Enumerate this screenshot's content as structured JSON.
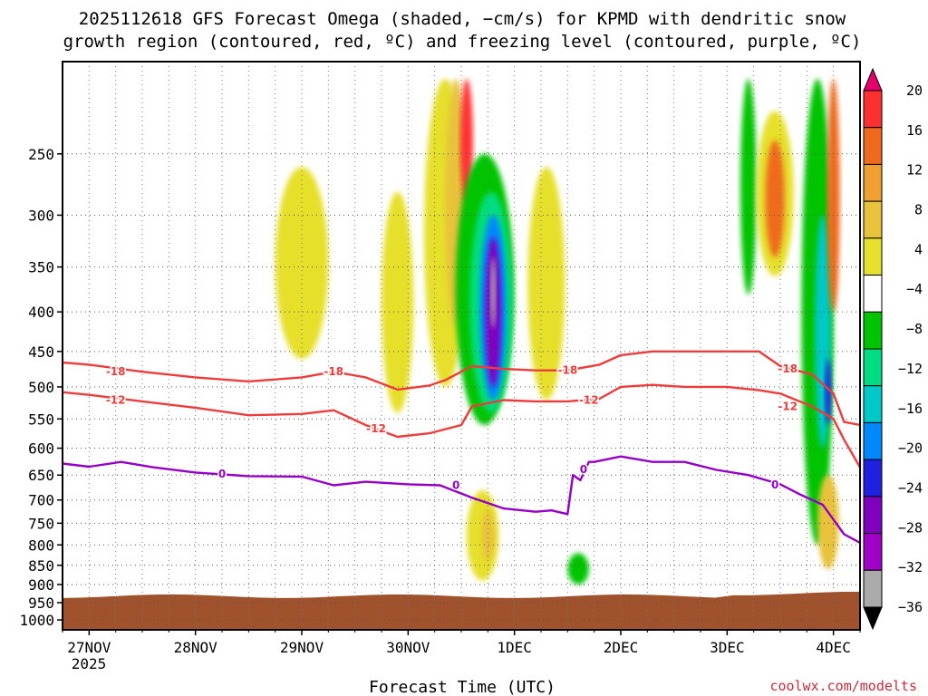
{
  "chart_data": {
    "type": "heatmap",
    "title_line1": "2025112618 GFS Forecast Omega (shaded, −cm/s) for KPMD with dendritic snow",
    "title_line2": "growth region (contoured, red, ºC) and freezing level (contoured, purple, ºC)",
    "xlabel": "Forecast Time (UTC)",
    "credit": "coolwx.com/modelts",
    "x_ticks": [
      {
        "label": "27NOV",
        "day": 0
      },
      {
        "label": "28NOV",
        "day": 1
      },
      {
        "label": "29NOV",
        "day": 2
      },
      {
        "label": "30NOV",
        "day": 3
      },
      {
        "label": "1DEC",
        "day": 4
      },
      {
        "label": "2DEC",
        "day": 5
      },
      {
        "label": "3DEC",
        "day": 6
      },
      {
        "label": "4DEC",
        "day": 7
      }
    ],
    "x_year": "2025",
    "xlim_days": [
      -0.25,
      7.25
    ],
    "y_ticks": [
      250,
      300,
      350,
      400,
      450,
      500,
      550,
      600,
      650,
      700,
      750,
      800,
      850,
      900,
      950,
      1000
    ],
    "ylim_hpa": [
      190,
      1030
    ],
    "ground_top_hpa": 932,
    "colorbar": {
      "tick_labels": [
        "20",
        "16",
        "12",
        "8",
        "4",
        "−4",
        "−8",
        "−12",
        "−16",
        "−20",
        "−24",
        "−28",
        "−32",
        "−36"
      ],
      "colors": [
        "#e5006e",
        "#ff3030",
        "#f06a1e",
        "#f0a030",
        "#e8c23a",
        "#e6e02c",
        "#ffffff",
        "#00c400",
        "#00dd80",
        "#00c8c8",
        "#0088ff",
        "#2020e0",
        "#8000c0",
        "#a000c8",
        "#aaaaaa",
        "#000000"
      ]
    },
    "series": [
      {
        "name": "-18",
        "color": "#ee3b3b",
        "x": [
          -0.25,
          0.0,
          0.5,
          1.0,
          1.5,
          2.0,
          2.3,
          2.6,
          2.9,
          3.2,
          3.35,
          3.6,
          3.9,
          4.2,
          4.5,
          4.8,
          5.0,
          5.3,
          5.6,
          6.0,
          6.3,
          6.5,
          6.8,
          7.0,
          7.1,
          7.25
        ],
        "y": [
          465,
          468,
          478,
          486,
          492,
          486,
          478,
          486,
          504,
          498,
          490,
          470,
          474,
          476,
          476,
          468,
          455,
          450,
          450,
          450,
          450,
          470,
          482,
          510,
          555,
          560
        ]
      },
      {
        "name": "-12",
        "color": "#ee3b3b",
        "x": [
          -0.25,
          0.0,
          0.5,
          1.0,
          1.5,
          2.0,
          2.3,
          2.6,
          2.9,
          3.2,
          3.5,
          3.6,
          3.9,
          4.2,
          4.5,
          4.8,
          5.0,
          5.3,
          5.6,
          6.0,
          6.3,
          6.5,
          6.8,
          7.0,
          7.1,
          7.25
        ],
        "y": [
          508,
          512,
          522,
          532,
          544,
          542,
          536,
          560,
          580,
          574,
          560,
          530,
          520,
          522,
          522,
          518,
          500,
          497,
          500,
          500,
          505,
          510,
          530,
          550,
          585,
          635
        ]
      },
      {
        "name": "0",
        "color": "#9400c8",
        "x": [
          -0.25,
          0.0,
          0.3,
          0.6,
          1.0,
          1.5,
          2.0,
          2.3,
          2.6,
          3.0,
          3.3,
          3.6,
          3.9,
          4.2,
          4.35,
          4.5,
          4.55,
          4.62,
          4.7,
          4.75,
          5.0,
          5.3,
          5.6,
          5.9,
          6.2,
          6.5,
          6.7,
          6.9,
          7.0,
          7.1,
          7.25
        ],
        "y": [
          628,
          634,
          625,
          635,
          645,
          652,
          653,
          670,
          663,
          668,
          670,
          695,
          718,
          725,
          722,
          730,
          650,
          660,
          625,
          625,
          615,
          625,
          625,
          640,
          650,
          668,
          690,
          710,
          742,
          775,
          795
        ]
      }
    ],
    "contour_labels": [
      {
        "text": "-18",
        "day": 0.25,
        "hpa": 478
      },
      {
        "text": "-18",
        "day": 2.3,
        "hpa": 478
      },
      {
        "text": "-18",
        "day": 4.5,
        "hpa": 476
      },
      {
        "text": "-18",
        "day": 6.57,
        "hpa": 474
      },
      {
        "text": "-12",
        "day": 0.25,
        "hpa": 520
      },
      {
        "text": "-12",
        "day": 2.7,
        "hpa": 566
      },
      {
        "text": "-12",
        "day": 4.7,
        "hpa": 520
      },
      {
        "text": "-12",
        "day": 6.57,
        "hpa": 530
      },
      {
        "text": "0",
        "day": 1.25,
        "hpa": 648
      },
      {
        "text": "0",
        "day": 3.45,
        "hpa": 670
      },
      {
        "text": "0",
        "day": 4.65,
        "hpa": 639
      },
      {
        "text": "0",
        "day": 6.45,
        "hpa": 669
      }
    ],
    "shaded_regions": [
      {
        "level": "4",
        "day": 2.0,
        "hpa_top": 260,
        "hpa_bot": 460,
        "width_days": 0.5
      },
      {
        "level": "4",
        "day": 2.9,
        "hpa_top": 280,
        "hpa_bot": 540,
        "width_days": 0.3
      },
      {
        "level": "4",
        "day": 3.35,
        "hpa_top": 200,
        "hpa_bot": 500,
        "width_days": 0.4
      },
      {
        "level": "8",
        "day": 3.45,
        "hpa_top": 200,
        "hpa_bot": 420,
        "width_days": 0.2
      },
      {
        "level": "20",
        "day": 3.55,
        "hpa_top": 200,
        "hpa_bot": 290,
        "width_days": 0.12
      },
      {
        "level": "-8",
        "day": 3.72,
        "hpa_top": 250,
        "hpa_bot": 560,
        "width_days": 0.55
      },
      {
        "level": "-12",
        "day": 3.78,
        "hpa_top": 280,
        "hpa_bot": 540,
        "width_days": 0.4
      },
      {
        "level": "-20",
        "day": 3.8,
        "hpa_top": 300,
        "hpa_bot": 520,
        "width_days": 0.25
      },
      {
        "level": "-28",
        "day": 3.8,
        "hpa_top": 320,
        "hpa_bot": 500,
        "width_days": 0.15
      },
      {
        "level": "-32",
        "day": 3.8,
        "hpa_top": 340,
        "hpa_bot": 420,
        "width_days": 0.05
      },
      {
        "level": "4",
        "day": 4.3,
        "hpa_top": 260,
        "hpa_bot": 520,
        "width_days": 0.35
      },
      {
        "level": "4",
        "day": 3.7,
        "hpa_top": 680,
        "hpa_bot": 890,
        "width_days": 0.3
      },
      {
        "level": "8",
        "day": 3.75,
        "hpa_top": 720,
        "hpa_bot": 840,
        "width_days": 0.12
      },
      {
        "level": "-8",
        "day": 4.6,
        "hpa_top": 820,
        "hpa_bot": 900,
        "width_days": 0.2
      },
      {
        "level": "-8",
        "day": 6.2,
        "hpa_top": 200,
        "hpa_bot": 380,
        "width_days": 0.15
      },
      {
        "level": "4",
        "day": 6.45,
        "hpa_top": 220,
        "hpa_bot": 360,
        "width_days": 0.35
      },
      {
        "level": "12",
        "day": 6.45,
        "hpa_top": 240,
        "hpa_bot": 340,
        "width_days": 0.18
      },
      {
        "level": "-8",
        "day": 6.85,
        "hpa_top": 200,
        "hpa_bot": 800,
        "width_days": 0.3
      },
      {
        "level": "-16",
        "day": 6.9,
        "hpa_top": 300,
        "hpa_bot": 600,
        "width_days": 0.15
      },
      {
        "level": "-24",
        "day": 6.95,
        "hpa_top": 460,
        "hpa_bot": 560,
        "width_days": 0.06
      },
      {
        "level": "12",
        "day": 7.0,
        "hpa_top": 200,
        "hpa_bot": 400,
        "width_days": 0.12
      },
      {
        "level": "8",
        "day": 6.95,
        "hpa_top": 650,
        "hpa_bot": 860,
        "width_days": 0.2
      }
    ]
  }
}
